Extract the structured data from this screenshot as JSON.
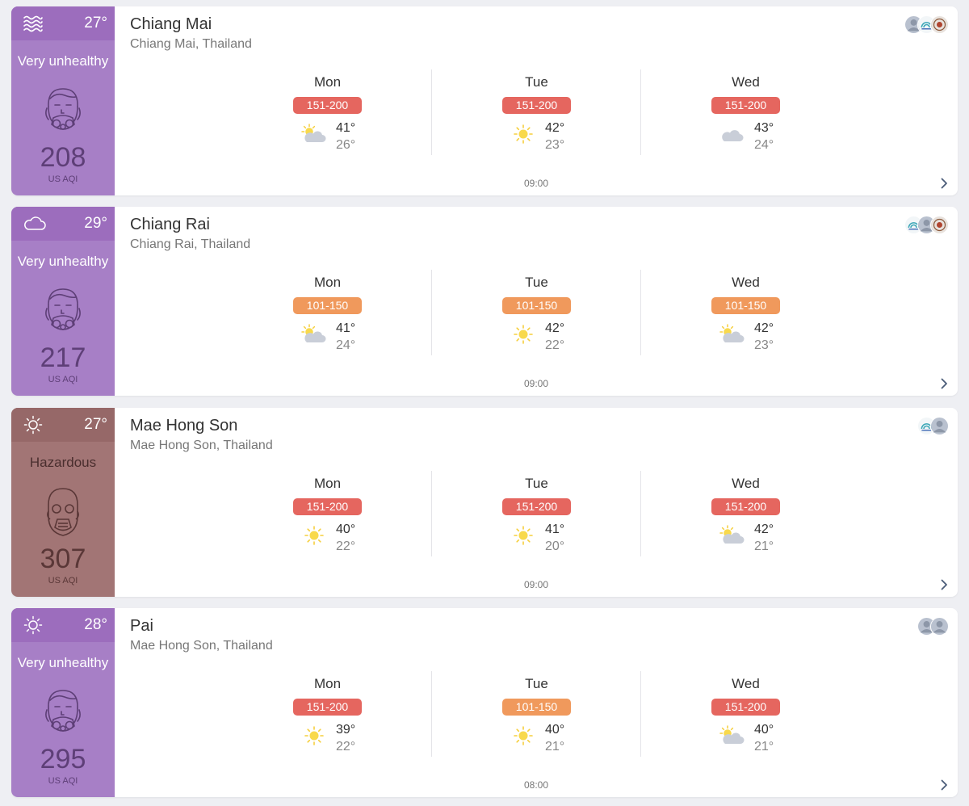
{
  "colors": {
    "very_unhealthy_panel": "#a77fc6",
    "very_unhealthy_top": "#9c6dbd",
    "very_unhealthy_text": "#ffffff",
    "very_unhealthy_number": "#5e3f77",
    "hazardous_panel": "#a27575",
    "hazardous_top": "#966868",
    "hazardous_text": "#ffffff",
    "hazardous_number": "#5a3737",
    "badge_151_200": "#e5665f",
    "badge_101_150": "#f0995c"
  },
  "cards": [
    {
      "city": "Chiang Mai",
      "region": "Chiang Mai, Thailand",
      "current_temp": "27°",
      "current_weather_icon": "haze-icon",
      "aqi_level": "Very unhealthy",
      "aqi_value": "208",
      "aqi_unit": "US AQI",
      "update_time": "09:00",
      "sources": [
        "person-avatar-icon",
        "station-logo-icon",
        "government-seal-icon"
      ],
      "forecast": [
        {
          "day": "Mon",
          "aqi_range": "151-200",
          "icon": "partly-cloudy-icon",
          "high": "41°",
          "low": "26°"
        },
        {
          "day": "Tue",
          "aqi_range": "151-200",
          "icon": "sun-icon",
          "high": "42°",
          "low": "23°"
        },
        {
          "day": "Wed",
          "aqi_range": "151-200",
          "icon": "cloud-icon",
          "high": "43°",
          "low": "24°"
        }
      ]
    },
    {
      "city": "Chiang Rai",
      "region": "Chiang Rai, Thailand",
      "current_temp": "29°",
      "current_weather_icon": "cloud-outline-icon",
      "aqi_level": "Very unhealthy",
      "aqi_value": "217",
      "aqi_unit": "US AQI",
      "update_time": "09:00",
      "sources": [
        "station-logo-icon",
        "person-avatar-icon",
        "government-seal-icon"
      ],
      "forecast": [
        {
          "day": "Mon",
          "aqi_range": "101-150",
          "icon": "partly-cloudy-icon",
          "high": "41°",
          "low": "24°"
        },
        {
          "day": "Tue",
          "aqi_range": "101-150",
          "icon": "sun-icon",
          "high": "42°",
          "low": "22°"
        },
        {
          "day": "Wed",
          "aqi_range": "101-150",
          "icon": "partly-cloudy-icon",
          "high": "42°",
          "low": "23°"
        }
      ]
    },
    {
      "city": "Mae Hong Son",
      "region": "Mae Hong Son, Thailand",
      "current_temp": "27°",
      "current_weather_icon": "sun-outline-icon",
      "aqi_level": "Hazardous",
      "aqi_value": "307",
      "aqi_unit": "US AQI",
      "update_time": "09:00",
      "sources": [
        "station-logo-icon",
        "person-avatar-icon"
      ],
      "forecast": [
        {
          "day": "Mon",
          "aqi_range": "151-200",
          "icon": "sun-icon",
          "high": "40°",
          "low": "22°"
        },
        {
          "day": "Tue",
          "aqi_range": "151-200",
          "icon": "sun-icon",
          "high": "41°",
          "low": "20°"
        },
        {
          "day": "Wed",
          "aqi_range": "151-200",
          "icon": "partly-cloudy-icon",
          "high": "42°",
          "low": "21°"
        }
      ]
    },
    {
      "city": "Pai",
      "region": "Mae Hong Son, Thailand",
      "current_temp": "28°",
      "current_weather_icon": "sun-outline-icon",
      "aqi_level": "Very unhealthy",
      "aqi_value": "295",
      "aqi_unit": "US AQI",
      "update_time": "08:00",
      "sources": [
        "person-avatar-icon",
        "person-avatar-icon"
      ],
      "forecast": [
        {
          "day": "Mon",
          "aqi_range": "151-200",
          "icon": "sun-icon",
          "high": "39°",
          "low": "22°"
        },
        {
          "day": "Tue",
          "aqi_range": "101-150",
          "icon": "sun-icon",
          "high": "40°",
          "low": "21°"
        },
        {
          "day": "Wed",
          "aqi_range": "151-200",
          "icon": "partly-cloudy-icon",
          "high": "40°",
          "low": "21°"
        }
      ]
    }
  ]
}
